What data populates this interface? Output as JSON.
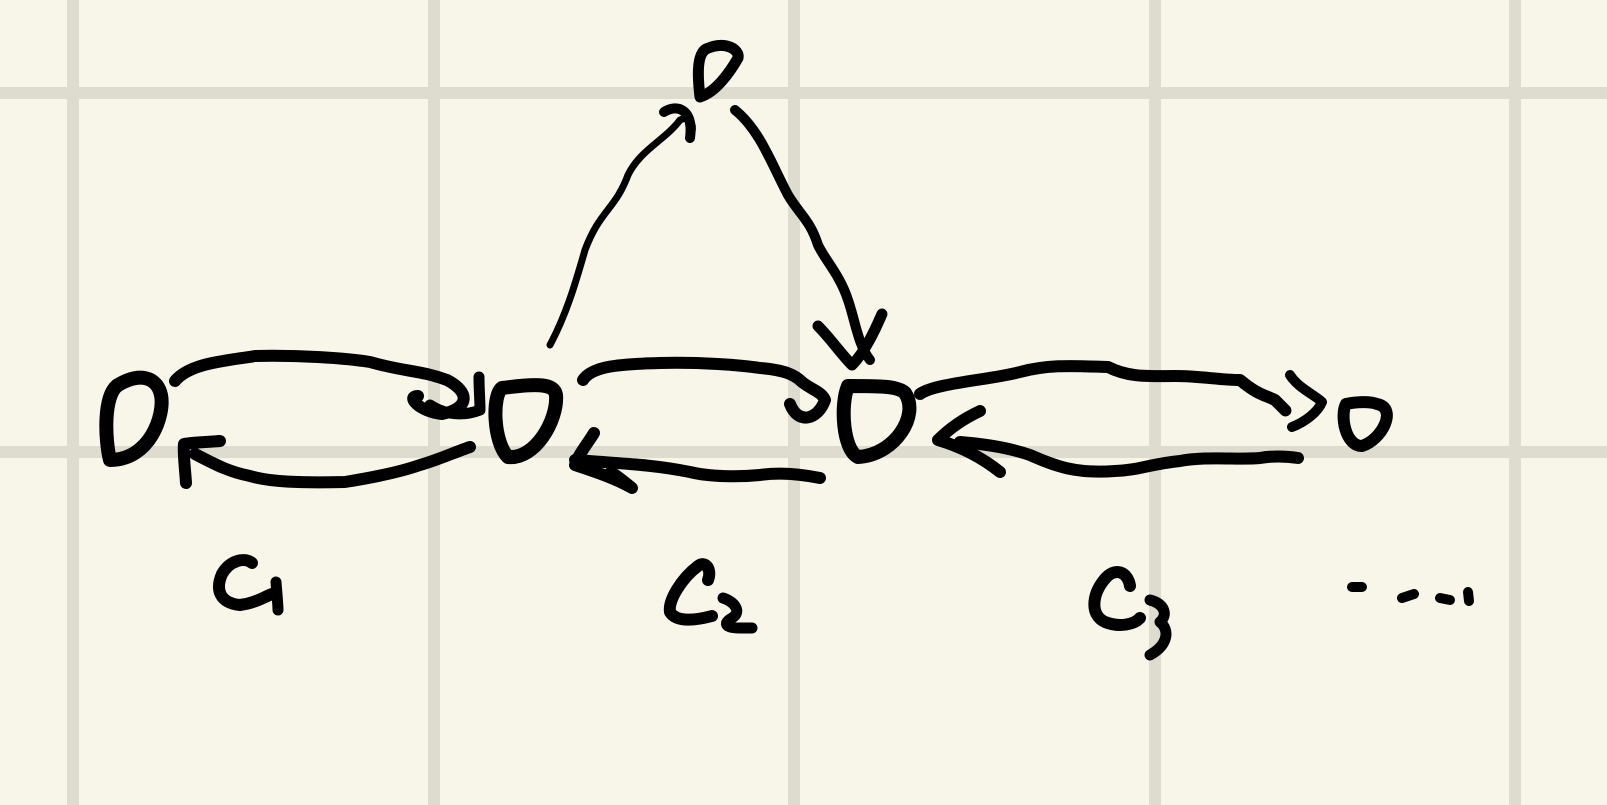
{
  "diagram": {
    "type": "hand-drawn state diagram",
    "nodes": [
      {
        "id": "top",
        "kind": "state"
      },
      {
        "id": "n1",
        "kind": "state"
      },
      {
        "id": "n2",
        "kind": "state"
      },
      {
        "id": "n3",
        "kind": "state"
      },
      {
        "id": "n4",
        "kind": "state"
      }
    ],
    "edges": [
      {
        "from": "n1",
        "to": "top"
      },
      {
        "from": "top",
        "to": "n3"
      },
      {
        "from": "n1",
        "to": "n2"
      },
      {
        "from": "n2",
        "to": "n1"
      },
      {
        "from": "n2",
        "to": "n3"
      },
      {
        "from": "n3",
        "to": "n2"
      },
      {
        "from": "n3",
        "to": "n4"
      },
      {
        "from": "n4",
        "to": "n3"
      }
    ],
    "labels": {
      "c1": "c1",
      "c2": "c2",
      "c3": "c3",
      "ellipsis": "...."
    },
    "colors": {
      "ink": "#000000",
      "paper": "#f8f5e9",
      "grid": "#dedbcf"
    }
  }
}
